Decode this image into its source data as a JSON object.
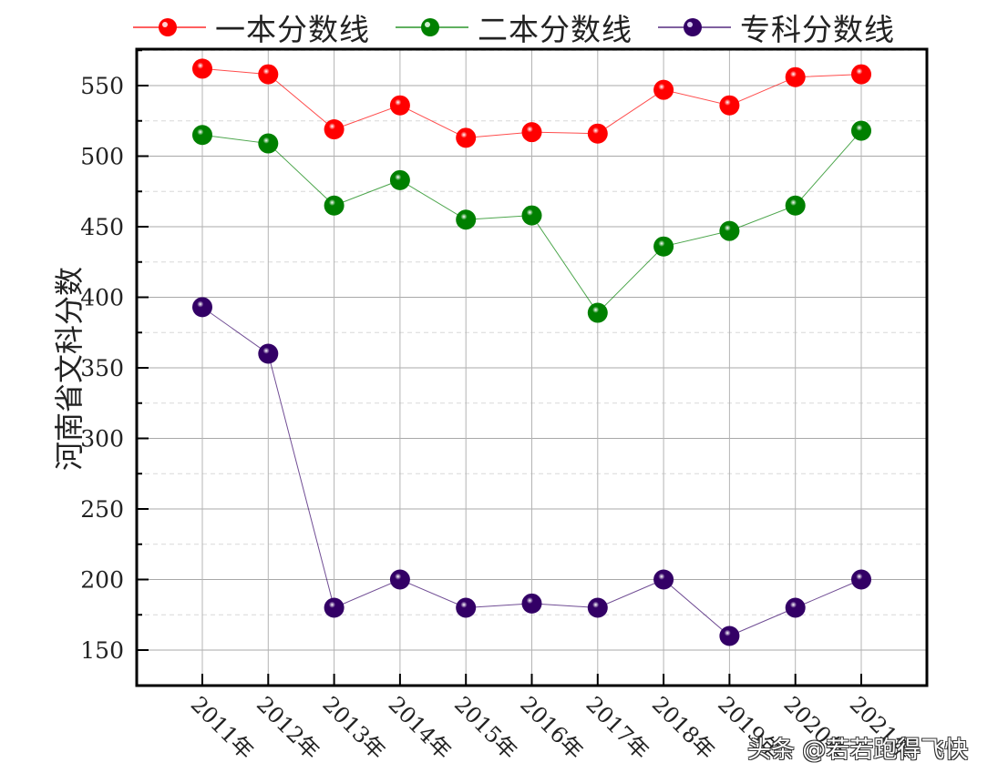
{
  "chart_data": {
    "type": "line",
    "title": "",
    "xlabel": "",
    "ylabel": "河南省文科分数",
    "categories": [
      "2011年",
      "2012年",
      "2013年",
      "2014年",
      "2015年",
      "2016年",
      "2017年",
      "2018年",
      "2019年",
      "2020年",
      "2021年"
    ],
    "series": [
      {
        "name": "一本分数线",
        "color": "#ff0000",
        "values": [
          562,
          558,
          519,
          536,
          513,
          517,
          516,
          547,
          536,
          556,
          558
        ]
      },
      {
        "name": "二本分数线",
        "color": "#008000",
        "values": [
          515,
          509,
          465,
          483,
          455,
          458,
          389,
          436,
          447,
          465,
          518
        ]
      },
      {
        "name": "专科分数线",
        "color": "#330066",
        "values": [
          393,
          360,
          180,
          200,
          180,
          183,
          180,
          200,
          160,
          180,
          200
        ]
      }
    ],
    "yticks": [
      150,
      200,
      250,
      300,
      350,
      400,
      450,
      500,
      550
    ],
    "ylim": [
      125,
      575
    ],
    "grid": true,
    "legend_position": "top"
  },
  "legend": {
    "items": [
      {
        "label": "一本分数线",
        "color": "#ff0000"
      },
      {
        "label": "二本分数线",
        "color": "#008000"
      },
      {
        "label": "专科分数线",
        "color": "#330066"
      }
    ]
  },
  "axis": {
    "ylabel": "河南省文科分数"
  },
  "watermark": "头条 @若若跑得飞快"
}
